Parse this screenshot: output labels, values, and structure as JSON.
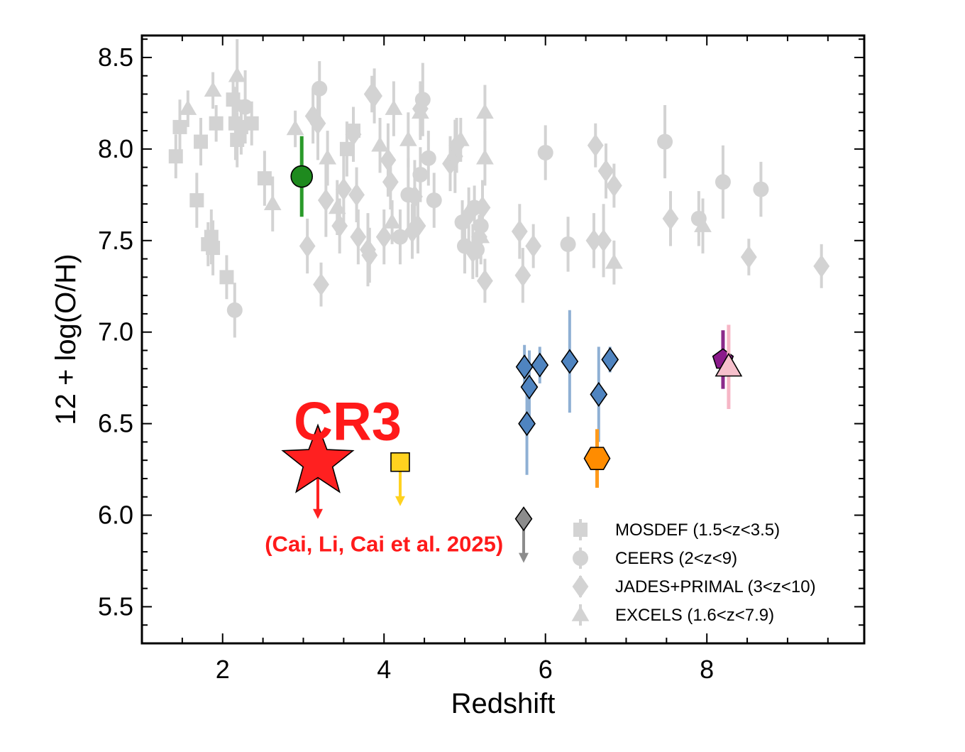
{
  "chart_data": {
    "type": "scatter",
    "xlabel": "Redshift",
    "ylabel": "12 + log(O/H)",
    "xlim": [
      1.0,
      9.95
    ],
    "ylim": [
      5.3,
      8.62
    ],
    "xticks": [
      {
        "v": 2,
        "label": "2"
      },
      {
        "v": 4,
        "label": "4"
      },
      {
        "v": 6,
        "label": "6"
      },
      {
        "v": 8,
        "label": "8"
      }
    ],
    "yticks": [
      {
        "v": 5.5,
        "label": "5.5"
      },
      {
        "v": 6.0,
        "label": "6.0"
      },
      {
        "v": 6.5,
        "label": "6.5"
      },
      {
        "v": 7.0,
        "label": "7.0"
      },
      {
        "v": 7.5,
        "label": "7.5"
      },
      {
        "v": 8.0,
        "label": "8.0"
      },
      {
        "v": 8.5,
        "label": "8.5"
      }
    ],
    "legend": {
      "position": "bottom-right",
      "entries": [
        {
          "label": "MOSDEF (1.5<z<3.5)",
          "marker": "square"
        },
        {
          "label": "CEERS (2<z<9)",
          "marker": "circle"
        },
        {
          "label": "JADES+PRIMAL (3<z<10)",
          "marker": "diamond"
        },
        {
          "label": "EXCELS (1.6<z<7.9)",
          "marker": "triangle"
        }
      ]
    },
    "series": [
      {
        "name": "MOSDEF (1.5<z<3.5)",
        "marker": "square",
        "color": "#d3d3d3",
        "points": [
          [
            1.42,
            7.96,
            0.12
          ],
          [
            1.47,
            8.12,
            0.15
          ],
          [
            1.68,
            7.72,
            0.15
          ],
          [
            1.73,
            8.04,
            0.13
          ],
          [
            1.82,
            7.48,
            0.12
          ],
          [
            1.86,
            7.52,
            0.15
          ],
          [
            1.88,
            7.46,
            0.15
          ],
          [
            1.92,
            8.14,
            0.1
          ],
          [
            2.05,
            7.3,
            0.12
          ],
          [
            2.13,
            8.27,
            0.1
          ],
          [
            2.16,
            8.14,
            0.2
          ],
          [
            2.18,
            8.05,
            0.15
          ],
          [
            2.23,
            8.12,
            0.15
          ],
          [
            2.36,
            8.14,
            0.12
          ],
          [
            2.52,
            7.84,
            0.15
          ],
          [
            3.54,
            8.0,
            0.15
          ],
          [
            3.62,
            8.1,
            0.12
          ]
        ]
      },
      {
        "name": "CEERS (2<z<9)",
        "marker": "circle",
        "color": "#d3d3d3",
        "points": [
          [
            2.15,
            7.12,
            0.15
          ],
          [
            2.28,
            8.23,
            0.2
          ],
          [
            4.2,
            7.52,
            0.15
          ],
          [
            4.3,
            7.75,
            0.2
          ],
          [
            4.45,
            7.86,
            0.15
          ],
          [
            4.48,
            8.27,
            0.2
          ],
          [
            4.55,
            7.95,
            0.15
          ],
          [
            4.62,
            7.72,
            0.15
          ],
          [
            4.97,
            7.6,
            0.12
          ],
          [
            5.0,
            7.47,
            0.15
          ],
          [
            5.12,
            7.68,
            0.12
          ],
          [
            5.15,
            7.45,
            0.15
          ],
          [
            5.2,
            7.58,
            0.12
          ],
          [
            6.0,
            7.98,
            0.15
          ],
          [
            6.28,
            7.48,
            0.15
          ],
          [
            7.48,
            8.04,
            0.2
          ],
          [
            7.9,
            7.62,
            0.15
          ],
          [
            8.2,
            7.82,
            0.2
          ],
          [
            8.67,
            7.78,
            0.15
          ],
          [
            3.2,
            8.33,
            0.15
          ]
        ]
      },
      {
        "name": "JADES+PRIMAL (3<z<10)",
        "marker": "diamond",
        "color": "#d3d3d3",
        "points": [
          [
            3.05,
            7.47,
            0.15
          ],
          [
            3.12,
            8.18,
            0.15
          ],
          [
            3.18,
            8.14,
            0.2
          ],
          [
            3.22,
            7.26,
            0.12
          ],
          [
            3.28,
            7.72,
            0.2
          ],
          [
            3.45,
            7.58,
            0.15
          ],
          [
            3.5,
            7.78,
            0.2
          ],
          [
            3.62,
            8.08,
            0.15
          ],
          [
            3.66,
            7.75,
            0.15
          ],
          [
            3.68,
            7.52,
            0.15
          ],
          [
            3.8,
            7.45,
            0.2
          ],
          [
            3.82,
            7.42,
            0.15
          ],
          [
            3.88,
            8.29,
            0.15
          ],
          [
            4.0,
            7.52,
            0.15
          ],
          [
            4.05,
            7.94,
            0.2
          ],
          [
            4.08,
            7.82,
            0.15
          ],
          [
            4.35,
            7.55,
            0.15
          ],
          [
            4.38,
            7.74,
            0.2
          ],
          [
            4.42,
            7.58,
            0.15
          ],
          [
            4.45,
            8.22,
            0.15
          ],
          [
            4.82,
            7.92,
            0.15
          ],
          [
            4.88,
            7.96,
            0.2
          ],
          [
            4.9,
            8.02,
            0.15
          ],
          [
            5.05,
            7.64,
            0.15
          ],
          [
            5.1,
            7.44,
            0.15
          ],
          [
            5.18,
            7.52,
            0.12
          ],
          [
            5.22,
            7.68,
            0.15
          ],
          [
            5.25,
            7.28,
            0.12
          ],
          [
            5.68,
            7.55,
            0.15
          ],
          [
            5.72,
            7.31,
            0.15
          ],
          [
            5.85,
            7.47,
            0.12
          ],
          [
            6.6,
            7.5,
            0.15
          ],
          [
            6.62,
            8.02,
            0.12
          ],
          [
            6.72,
            7.5,
            0.2
          ],
          [
            6.75,
            7.88,
            0.15
          ],
          [
            6.85,
            7.8,
            0.12
          ],
          [
            7.55,
            7.62,
            0.15
          ],
          [
            8.52,
            7.41,
            0.1
          ],
          [
            9.42,
            7.36,
            0.12
          ],
          [
            3.85,
            8.3,
            0.1
          ]
        ]
      },
      {
        "name": "EXCELS (1.6<z<7.9)",
        "marker": "triangle",
        "color": "#d3d3d3",
        "points": [
          [
            1.57,
            8.22,
            0.1
          ],
          [
            1.88,
            8.32,
            0.1
          ],
          [
            2.18,
            8.4,
            0.2
          ],
          [
            2.62,
            7.7,
            0.15
          ],
          [
            2.9,
            8.11,
            0.1
          ],
          [
            3.3,
            7.95,
            0.15
          ],
          [
            3.42,
            7.68,
            0.15
          ],
          [
            3.95,
            8.02,
            0.15
          ],
          [
            4.1,
            7.6,
            0.12
          ],
          [
            4.12,
            8.22,
            0.15
          ],
          [
            4.3,
            8.05,
            0.15
          ],
          [
            4.45,
            8.2,
            0.15
          ],
          [
            4.95,
            8.05,
            0.12
          ],
          [
            5.25,
            8.2,
            0.15
          ],
          [
            5.25,
            7.95,
            0.15
          ],
          [
            5.2,
            7.52,
            0.15
          ],
          [
            6.85,
            7.38,
            0.12
          ],
          [
            7.95,
            7.58,
            0.15
          ]
        ]
      }
    ],
    "highlights": [
      {
        "name": "green circle",
        "marker": "circle",
        "z": 2.98,
        "oh": 7.85,
        "err": 0.22,
        "fill": "#1e8a1e",
        "err_color": "#2a9a2a"
      },
      {
        "name": "yellow square",
        "marker": "square",
        "z": 4.2,
        "oh": 6.29,
        "upper_limit": true,
        "fill": "#ffd21f",
        "err_color": "#ffd21f"
      },
      {
        "name": "grey diamond",
        "marker": "diamond",
        "z": 5.73,
        "oh": 5.98,
        "upper_limit": true,
        "fill": "#8c8c8c",
        "err_color": "#8c8c8c"
      },
      {
        "name": "blue diamonds",
        "marker": "diamond",
        "fill": "#4f84c0",
        "err_color": "#8fb0d4",
        "points": [
          [
            5.74,
            6.81,
            0.12
          ],
          [
            5.8,
            6.7,
            0.2
          ],
          [
            5.77,
            6.5,
            0.28
          ],
          [
            5.93,
            6.82,
            0.1
          ],
          [
            6.3,
            6.84,
            0.28
          ],
          [
            6.66,
            6.66,
            0.26
          ],
          [
            6.8,
            6.85,
            0.07
          ]
        ]
      },
      {
        "name": "orange hexagon",
        "marker": "hexagon",
        "z": 6.64,
        "oh": 6.31,
        "err": 0.16,
        "fill": "#ff8c00",
        "err_color": "#ff9a1a"
      },
      {
        "name": "purple pentagon",
        "marker": "pentagon",
        "z": 8.2,
        "oh": 6.85,
        "err": 0.16,
        "fill": "#8b1a8b",
        "err_color": "#8b2a8b"
      },
      {
        "name": "pink triangle",
        "marker": "triangle",
        "z": 8.27,
        "oh": 6.81,
        "err": 0.23,
        "fill": "#f6c0cc",
        "err_color": "#f6b6c6"
      },
      {
        "name": "CR3",
        "marker": "star",
        "z": 3.18,
        "oh": 6.29,
        "upper_limit": true,
        "fill": "#ff2020",
        "err_color": "#ff2020"
      }
    ],
    "annotations": [
      {
        "text": "CR3",
        "z": 3.55,
        "oh": 6.52,
        "color": "#ff1a1a"
      },
      {
        "text": "(Cai, Li, Cai et al. 2025)",
        "z": 4.0,
        "oh": 5.88,
        "color": "#ff1a1a"
      }
    ]
  }
}
